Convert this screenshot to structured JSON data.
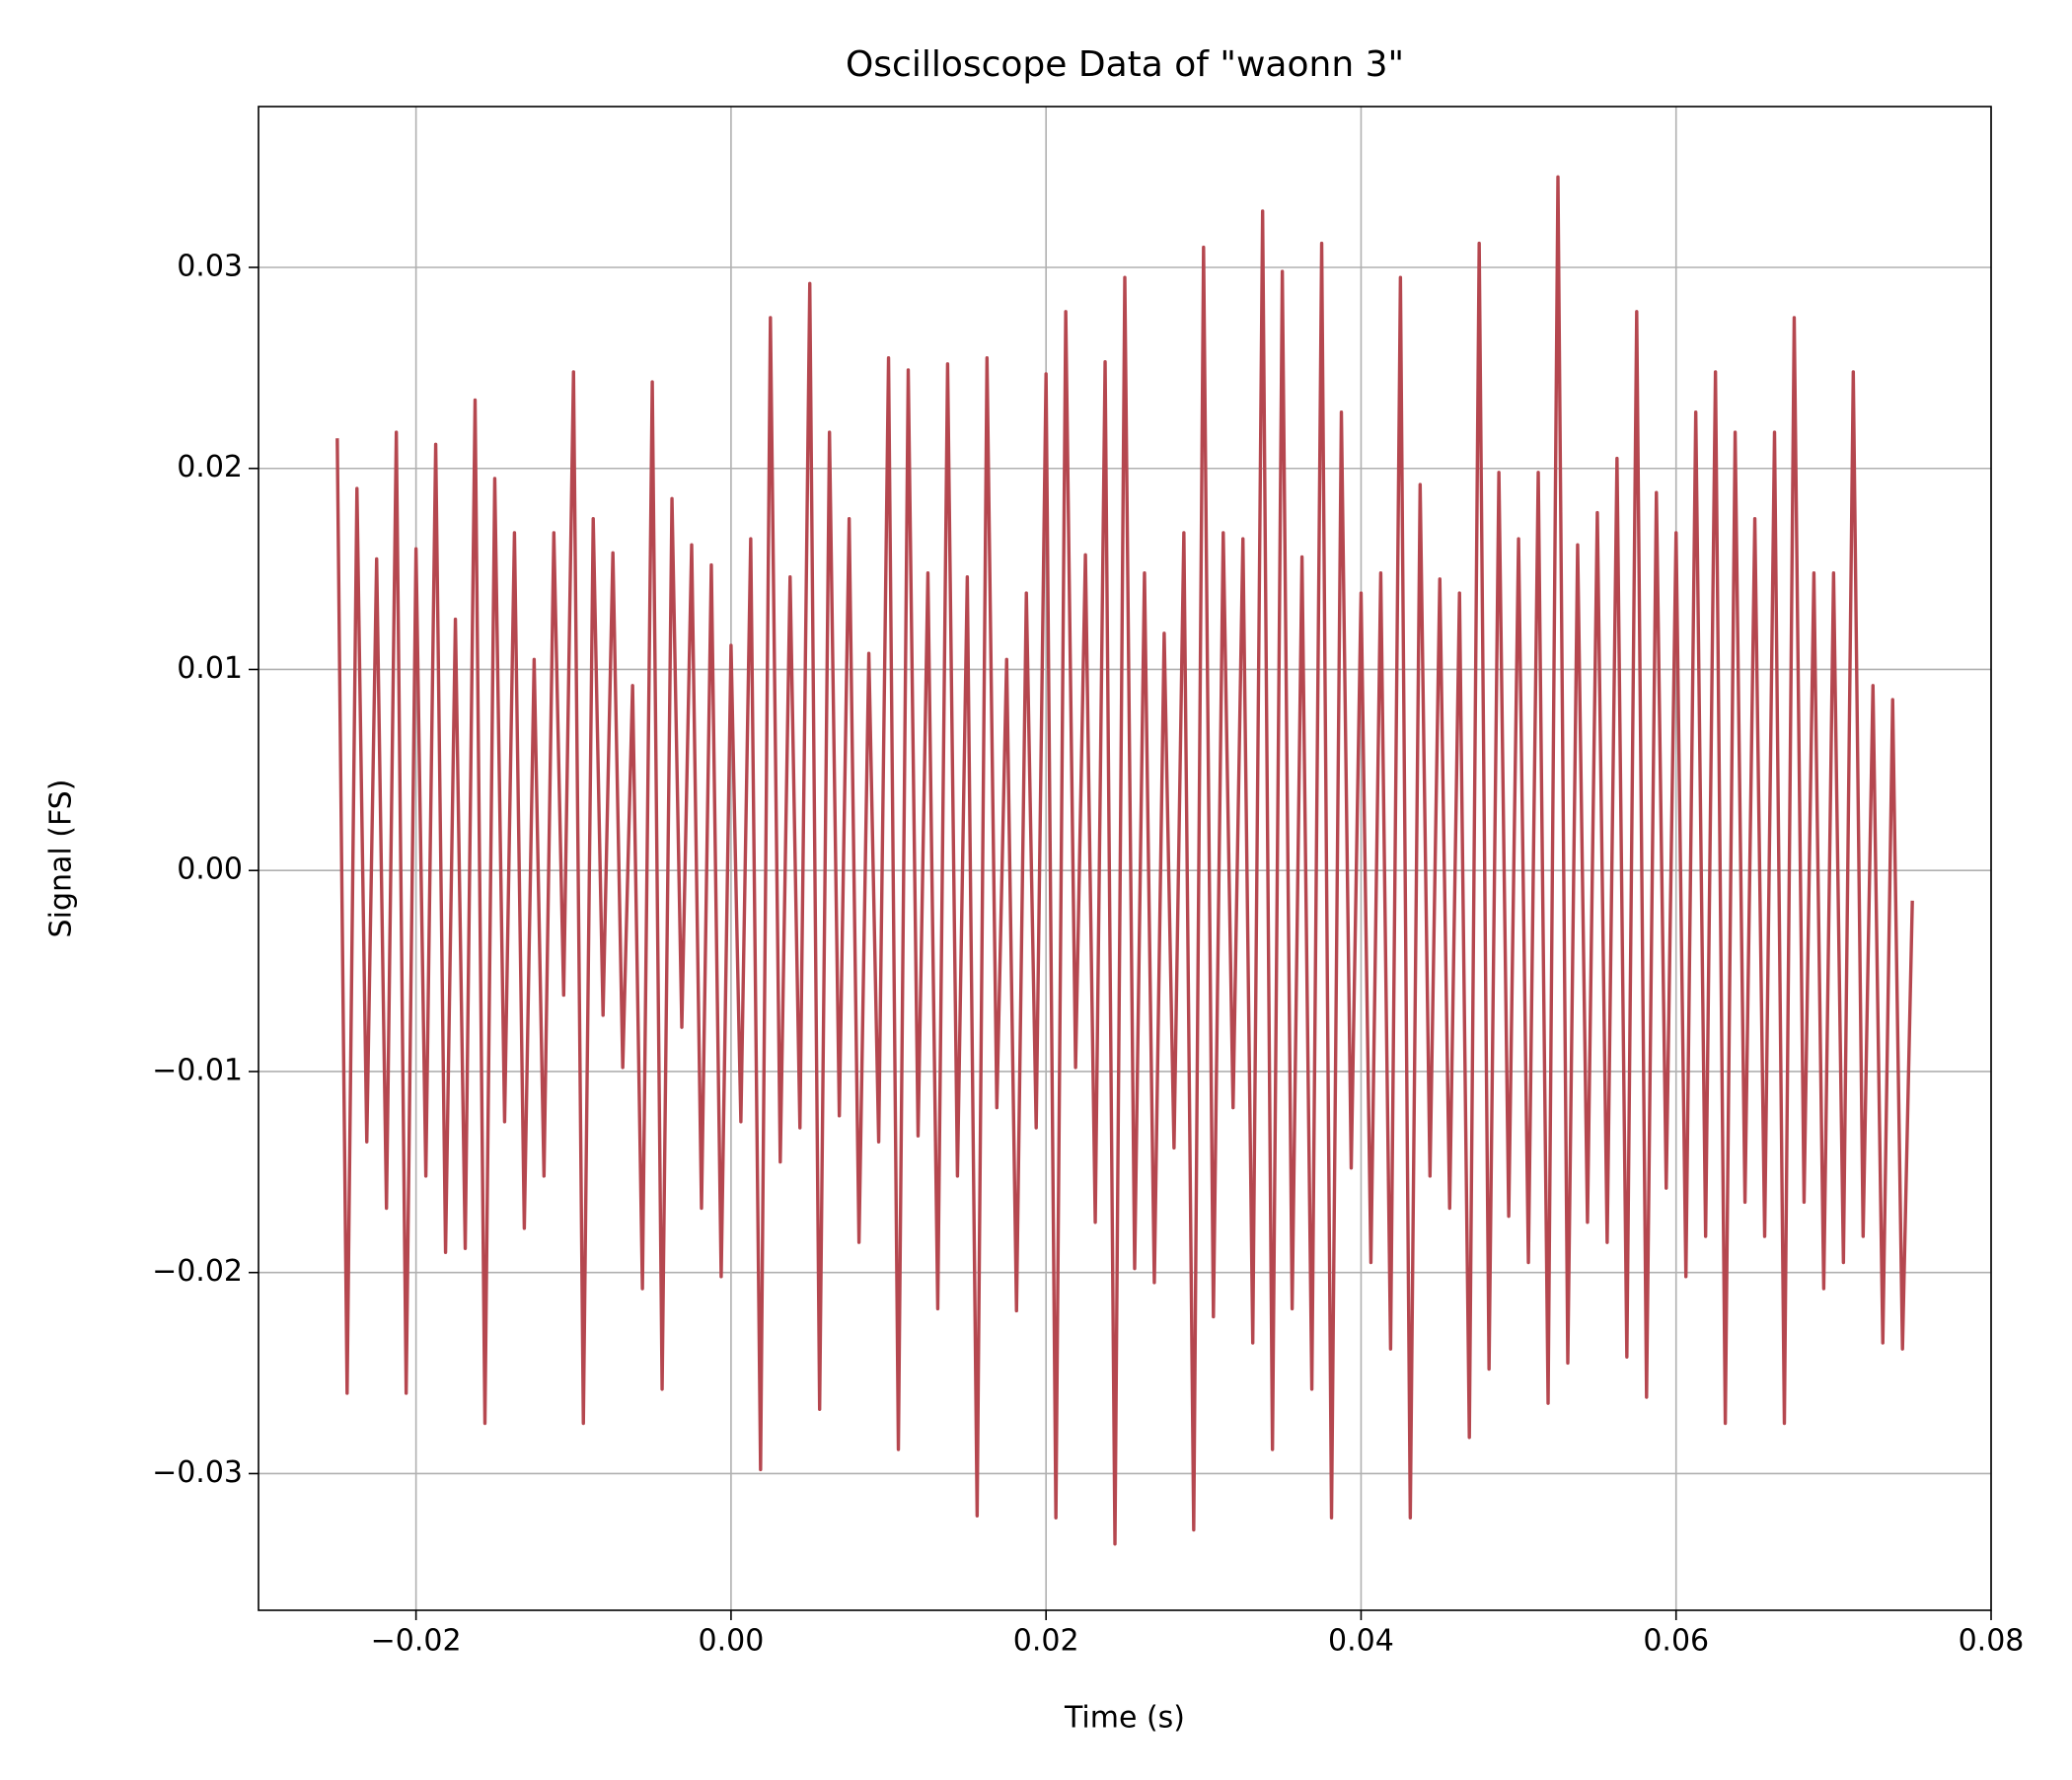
{
  "chart_data": {
    "type": "line",
    "title": "Oscilloscope Data of \"waonn 3\"",
    "x_label": "Time (s)",
    "y_label": "Signal (FS)",
    "color": "#b5474f",
    "grid": true,
    "xlim": [
      -0.03,
      0.08
    ],
    "ylim": [
      -0.0368,
      0.038
    ],
    "xticks": [
      {
        "value": -0.02,
        "label": "−0.02"
      },
      {
        "value": 0,
        "label": "0.00"
      },
      0.02,
      0.04,
      0.06,
      0.08
    ],
    "yticks": [
      {
        "value": -0.03,
        "label": "−0.03"
      },
      {
        "value": -0.02,
        "label": "−0.02"
      },
      {
        "value": -0.01,
        "label": "−0.01"
      },
      {
        "value": 0,
        "label": "0.00"
      },
      0.01,
      0.02,
      0.03
    ],
    "x": [
      -0.025,
      -0.024375,
      -0.02375,
      -0.023125,
      -0.0225,
      -0.021875,
      -0.02125,
      -0.020625,
      -0.02,
      -0.019375,
      -0.01875,
      -0.018125,
      -0.0175,
      -0.016875,
      -0.01625,
      -0.015625,
      -0.015,
      -0.014375,
      -0.01375,
      -0.013125,
      -0.0125,
      -0.011875,
      -0.01125,
      -0.010625,
      -0.01,
      -0.009375,
      -0.00875,
      -0.008125,
      -0.0075,
      -0.006875,
      -0.00625,
      -0.005625,
      -0.005,
      -0.004375,
      -0.00375,
      -0.003125,
      -0.0025,
      -0.001875,
      -0.00125,
      -0.000625,
      0,
      0.000625,
      0.00125,
      0.001875,
      0.0025,
      0.003125,
      0.00375,
      0.004375,
      0.005,
      0.005625,
      0.00625,
      0.006875,
      0.0075,
      0.008125,
      0.00875,
      0.009375,
      0.01,
      0.010625,
      0.01125,
      0.011875,
      0.0125,
      0.013125,
      0.01375,
      0.014375,
      0.015,
      0.015625,
      0.01625,
      0.016875,
      0.0175,
      0.018125,
      0.01875,
      0.019375,
      0.02,
      0.020625,
      0.02125,
      0.021875,
      0.0225,
      0.023125,
      0.02375,
      0.024375,
      0.025,
      0.025625,
      0.02625,
      0.026875,
      0.0275,
      0.028125,
      0.02875,
      0.029375,
      0.03,
      0.030625,
      0.03125,
      0.031875,
      0.0325,
      0.033125,
      0.03375,
      0.034375,
      0.035,
      0.035625,
      0.03625,
      0.036875,
      0.0375,
      0.038125,
      0.03875,
      0.039375,
      0.04,
      0.040625,
      0.04125,
      0.041875,
      0.0425,
      0.043125,
      0.04375,
      0.044375,
      0.045,
      0.045625,
      0.04625,
      0.046875,
      0.0475,
      0.048125,
      0.04875,
      0.049375,
      0.05,
      0.050625,
      0.05125,
      0.051875,
      0.0525,
      0.053125,
      0.05375,
      0.054375,
      0.055,
      0.055625,
      0.05625,
      0.056875,
      0.0575,
      0.058125,
      0.05875,
      0.059375,
      0.06,
      0.060625,
      0.06125,
      0.061875,
      0.0625,
      0.063125,
      0.06375,
      0.064375,
      0.065,
      0.065625,
      0.06625,
      0.066875,
      0.0675,
      0.068125,
      0.06875,
      0.069375,
      0.07,
      0.070625,
      0.07125,
      0.071875,
      0.0725,
      0.073125,
      0.07375,
      0.074375,
      0.075
    ],
    "values": [
      0.0215,
      -0.026,
      0.019,
      -0.0135,
      0.0155,
      -0.0168,
      0.0218,
      -0.026,
      0.016,
      -0.0152,
      0.0212,
      -0.019,
      0.0125,
      -0.0188,
      0.0234,
      -0.0275,
      0.0195,
      -0.0125,
      0.0168,
      -0.0178,
      0.0105,
      -0.0152,
      0.0168,
      -0.0062,
      0.0248,
      -0.0275,
      0.0175,
      -0.0072,
      0.0158,
      -0.0098,
      0.0092,
      -0.0208,
      0.0243,
      -0.0258,
      0.0185,
      -0.0078,
      0.0162,
      -0.0168,
      0.0152,
      -0.0202,
      0.0112,
      -0.0125,
      0.0165,
      -0.0298,
      0.0275,
      -0.0145,
      0.0146,
      -0.0128,
      0.0292,
      -0.0268,
      0.0218,
      -0.0122,
      0.0175,
      -0.0185,
      0.0108,
      -0.0135,
      0.0255,
      -0.0288,
      0.0249,
      -0.0132,
      0.0148,
      -0.0218,
      0.0252,
      -0.0152,
      0.0146,
      -0.0321,
      0.0255,
      -0.0118,
      0.0105,
      -0.0219,
      0.0138,
      -0.0128,
      0.0247,
      -0.0322,
      0.0278,
      -0.0098,
      0.0157,
      -0.0175,
      0.0253,
      -0.0335,
      0.0295,
      -0.0198,
      0.0148,
      -0.0205,
      0.0118,
      -0.0138,
      0.0168,
      -0.0328,
      0.031,
      -0.0222,
      0.0168,
      -0.0118,
      0.0165,
      -0.0235,
      0.0328,
      -0.0288,
      0.0298,
      -0.0218,
      0.0156,
      -0.0258,
      0.0312,
      -0.0322,
      0.0228,
      -0.0148,
      0.0138,
      -0.0195,
      0.0148,
      -0.0238,
      0.0295,
      -0.0322,
      0.0192,
      -0.0152,
      0.0145,
      -0.0168,
      0.0138,
      -0.0282,
      0.0312,
      -0.0248,
      0.0198,
      -0.0172,
      0.0165,
      -0.0195,
      0.0198,
      -0.0265,
      0.0345,
      -0.0245,
      0.0162,
      -0.0175,
      0.0178,
      -0.0185,
      0.0205,
      -0.0242,
      0.0278,
      -0.0262,
      0.0188,
      -0.0158,
      0.0168,
      -0.0202,
      0.0228,
      -0.0182,
      0.0248,
      -0.0275,
      0.0218,
      -0.0165,
      0.0175,
      -0.0182,
      0.0218,
      -0.0275,
      0.0275,
      -0.0165,
      0.0148,
      -0.0208,
      0.0148,
      -0.0195,
      0.0248,
      -0.0182,
      0.0092,
      -0.0235,
      0.0085,
      -0.0238,
      -0.0015
    ]
  }
}
